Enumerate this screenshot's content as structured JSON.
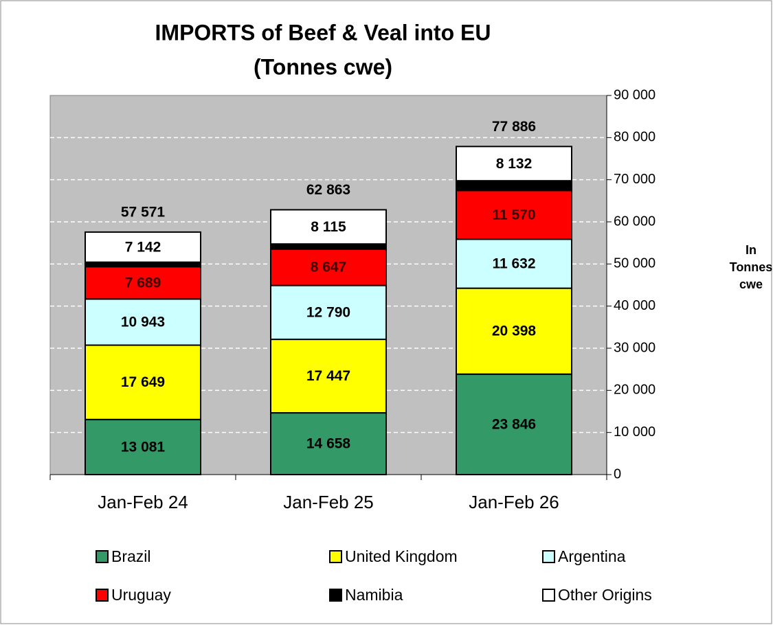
{
  "chart_data": {
    "type": "stacked_bar",
    "title": "IMPORTS of Beef & Veal into EU",
    "subtitle": "(Tonnes cwe)",
    "y_label": "In Tonnes cwe",
    "categories": [
      "Jan-Feb 24",
      "Jan-Feb 25",
      "Jan-Feb 26"
    ],
    "series": [
      {
        "name": "Brazil",
        "color": "#339966",
        "values": [
          13081,
          14658,
          23846
        ],
        "value_labels": [
          "13 081",
          "14 658",
          "23 846"
        ]
      },
      {
        "name": "United Kingdom",
        "color": "#ffff00",
        "values": [
          17649,
          17447,
          20398
        ],
        "value_labels": [
          "17 649",
          "17 447",
          "20 398"
        ]
      },
      {
        "name": "Argentina",
        "color": "#ccffff",
        "values": [
          10943,
          12790,
          11632
        ],
        "value_labels": [
          "10 943",
          "12 790",
          "11 632"
        ]
      },
      {
        "name": "Uruguay",
        "color": "#ff0000",
        "values": [
          7689,
          8647,
          11570
        ],
        "value_labels": [
          "7 689",
          "8 647",
          "11 570"
        ]
      },
      {
        "name": "Namibia",
        "color": "#000000",
        "values": [
          1067,
          1206,
          2308
        ]
      },
      {
        "name": "Other Origins",
        "color": "#ffffff",
        "values": [
          7142,
          8115,
          8132
        ],
        "value_labels": [
          "7 142",
          "8 115",
          "8 132"
        ]
      }
    ],
    "totals": [
      57571,
      62863,
      77886
    ],
    "total_labels": [
      "57 571",
      "62 863",
      "77 886"
    ],
    "ylim": [
      0,
      90000
    ],
    "yticks": [
      0,
      {
        "value": 10000,
        "label": "10 000"
      },
      {
        "value": 20000,
        "label": "20 000"
      },
      {
        "value": 30000,
        "label": "30 000"
      },
      {
        "value": 40000,
        "label": "40 000"
      },
      {
        "value": 50000,
        "label": "50 000"
      },
      {
        "value": 60000,
        "label": "60 000"
      },
      {
        "value": 70000,
        "label": "70 000"
      },
      {
        "value": 80000,
        "label": "80 000"
      },
      {
        "value": 90000,
        "label": "90 000"
      }
    ],
    "grid": true,
    "plot_background": "#c0c0c0"
  }
}
